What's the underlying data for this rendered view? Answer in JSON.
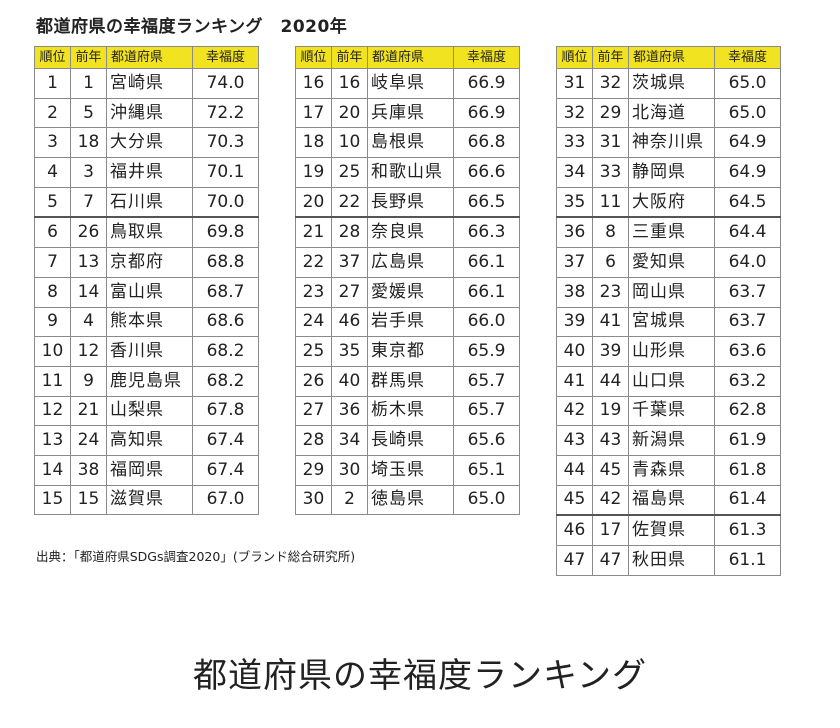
{
  "title": "都道府県の幸福度ランキング　2020年",
  "headers": {
    "rank": "順位",
    "prev": "前年",
    "pref": "都道府県",
    "score": "幸福度"
  },
  "colors": {
    "header_bg": "#f2e320",
    "border": "#8a8a8a"
  },
  "columns": [
    [
      {
        "rank": "1",
        "prev": "1",
        "pref": "宮崎県",
        "score": "74.0"
      },
      {
        "rank": "2",
        "prev": "5",
        "pref": "沖縄県",
        "score": "72.2"
      },
      {
        "rank": "3",
        "prev": "18",
        "pref": "大分県",
        "score": "70.3"
      },
      {
        "rank": "4",
        "prev": "3",
        "pref": "福井県",
        "score": "70.1"
      },
      {
        "rank": "5",
        "prev": "7",
        "pref": "石川県",
        "score": "70.0"
      },
      {
        "rank": "6",
        "prev": "26",
        "pref": "鳥取県",
        "score": "69.8"
      },
      {
        "rank": "7",
        "prev": "13",
        "pref": "京都府",
        "score": "68.8"
      },
      {
        "rank": "8",
        "prev": "14",
        "pref": "富山県",
        "score": "68.7"
      },
      {
        "rank": "9",
        "prev": "4",
        "pref": "熊本県",
        "score": "68.6"
      },
      {
        "rank": "10",
        "prev": "12",
        "pref": "香川県",
        "score": "68.2"
      },
      {
        "rank": "11",
        "prev": "9",
        "pref": "鹿児島県",
        "score": "68.2"
      },
      {
        "rank": "12",
        "prev": "21",
        "pref": "山梨県",
        "score": "67.8"
      },
      {
        "rank": "13",
        "prev": "24",
        "pref": "高知県",
        "score": "67.4"
      },
      {
        "rank": "14",
        "prev": "38",
        "pref": "福岡県",
        "score": "67.4"
      },
      {
        "rank": "15",
        "prev": "15",
        "pref": "滋賀県",
        "score": "67.0"
      }
    ],
    [
      {
        "rank": "16",
        "prev": "16",
        "pref": "岐阜県",
        "score": "66.9"
      },
      {
        "rank": "17",
        "prev": "20",
        "pref": "兵庫県",
        "score": "66.9"
      },
      {
        "rank": "18",
        "prev": "10",
        "pref": "島根県",
        "score": "66.8"
      },
      {
        "rank": "19",
        "prev": "25",
        "pref": "和歌山県",
        "score": "66.6"
      },
      {
        "rank": "20",
        "prev": "22",
        "pref": "長野県",
        "score": "66.5"
      },
      {
        "rank": "21",
        "prev": "28",
        "pref": "奈良県",
        "score": "66.3"
      },
      {
        "rank": "22",
        "prev": "37",
        "pref": "広島県",
        "score": "66.1"
      },
      {
        "rank": "23",
        "prev": "27",
        "pref": "愛媛県",
        "score": "66.1"
      },
      {
        "rank": "24",
        "prev": "46",
        "pref": "岩手県",
        "score": "66.0"
      },
      {
        "rank": "25",
        "prev": "35",
        "pref": "東京都",
        "score": "65.9"
      },
      {
        "rank": "26",
        "prev": "40",
        "pref": "群馬県",
        "score": "65.7"
      },
      {
        "rank": "27",
        "prev": "36",
        "pref": "栃木県",
        "score": "65.7"
      },
      {
        "rank": "28",
        "prev": "34",
        "pref": "長崎県",
        "score": "65.6"
      },
      {
        "rank": "29",
        "prev": "30",
        "pref": "埼玉県",
        "score": "65.1"
      },
      {
        "rank": "30",
        "prev": "2",
        "pref": "徳島県",
        "score": "65.0"
      }
    ],
    [
      {
        "rank": "31",
        "prev": "32",
        "pref": "茨城県",
        "score": "65.0"
      },
      {
        "rank": "32",
        "prev": "29",
        "pref": "北海道",
        "score": "65.0"
      },
      {
        "rank": "33",
        "prev": "31",
        "pref": "神奈川県",
        "score": "64.9"
      },
      {
        "rank": "34",
        "prev": "33",
        "pref": "静岡県",
        "score": "64.9"
      },
      {
        "rank": "35",
        "prev": "11",
        "pref": "大阪府",
        "score": "64.5"
      },
      {
        "rank": "36",
        "prev": "8",
        "pref": "三重県",
        "score": "64.4"
      },
      {
        "rank": "37",
        "prev": "6",
        "pref": "愛知県",
        "score": "64.0"
      },
      {
        "rank": "38",
        "prev": "23",
        "pref": "岡山県",
        "score": "63.7"
      },
      {
        "rank": "39",
        "prev": "41",
        "pref": "宮城県",
        "score": "63.7"
      },
      {
        "rank": "40",
        "prev": "39",
        "pref": "山形県",
        "score": "63.6"
      },
      {
        "rank": "41",
        "prev": "44",
        "pref": "山口県",
        "score": "63.2"
      },
      {
        "rank": "42",
        "prev": "19",
        "pref": "千葉県",
        "score": "62.8"
      },
      {
        "rank": "43",
        "prev": "43",
        "pref": "新潟県",
        "score": "61.9"
      },
      {
        "rank": "44",
        "prev": "45",
        "pref": "青森県",
        "score": "61.8"
      },
      {
        "rank": "45",
        "prev": "42",
        "pref": "福島県",
        "score": "61.4"
      },
      {
        "rank": "46",
        "prev": "17",
        "pref": "佐賀県",
        "score": "61.3"
      },
      {
        "rank": "47",
        "prev": "47",
        "pref": "秋田県",
        "score": "61.1"
      }
    ]
  ],
  "source": "出典：「都道府県SDGs調査2020」(ブランド総合研究所)",
  "caption": "都道府県の幸福度ランキング"
}
